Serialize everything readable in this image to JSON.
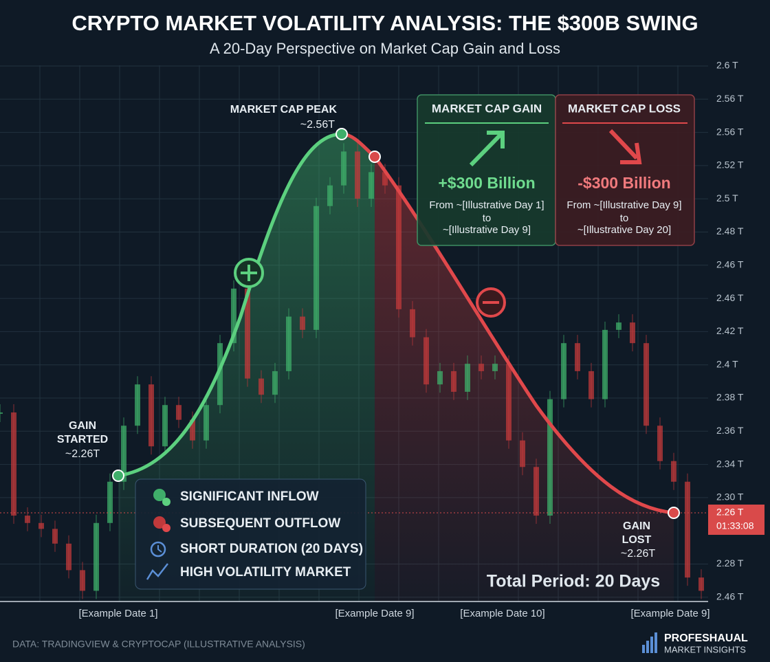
{
  "header": {
    "title": "CRYPTO MARKET VOLATILITY ANALYSIS: THE $300B SWING",
    "subtitle": "A 20-Day Perspective on Market Cap Gain and Loss"
  },
  "axis": {
    "labels": [
      "2.6 T",
      "2.56 T",
      "2.56 T",
      "2.52 T",
      "2.5 T",
      "2.48 T",
      "2.46 T",
      "2.46 T",
      "2.42 T",
      "2.4 T",
      "2.38 T",
      "2.36 T",
      "2.34 T",
      "2.30 T",
      "2.28 T",
      "2.46 T"
    ],
    "current_price": {
      "label": "2.26 T",
      "timer": "01:33:08"
    }
  },
  "dates": [
    "[Example Date 1]",
    "[Example Date 9]",
    "[Example Date 10]",
    "[Example Date 9]"
  ],
  "price": {
    "scale": [
      2.24,
      2.6
    ],
    "closes": [
      2.365,
      2.295,
      2.29,
      2.286,
      2.276,
      2.258,
      2.244,
      2.29,
      2.318,
      2.356,
      2.384,
      2.342,
      2.37,
      2.36,
      2.346,
      2.37,
      2.412,
      2.449,
      2.388,
      2.377,
      2.393,
      2.43,
      2.421,
      2.505,
      2.519,
      2.542,
      2.51,
      2.528,
      2.519,
      2.435,
      2.416,
      2.384,
      2.393,
      2.379,
      2.398,
      2.393,
      2.398,
      2.346,
      2.328,
      2.295,
      2.374,
      2.412,
      2.393,
      2.374,
      2.421,
      2.426,
      2.412,
      2.356,
      2.332,
      2.318,
      2.253,
      2.244
    ]
  },
  "annotations": {
    "peak": {
      "title": "MARKET CAP PEAK",
      "value": "~2.56T"
    },
    "gain_started": {
      "lines": [
        "GAIN",
        "STARTED"
      ],
      "value": "~2.26T"
    },
    "gain_lost": {
      "lines": [
        "GAIN",
        "LOST"
      ],
      "value": "~2.26T"
    }
  },
  "panel": {
    "gain": {
      "header": "MARKET CAP GAIN",
      "amount": "+$300 Billion",
      "from": "From ~[Illustrative Day 1]",
      "to": "to",
      "until": "~[Illustrative Day 9]"
    },
    "loss": {
      "header": "MARKET CAP LOSS",
      "amount": "-$300 Billion",
      "from": "From ~[Illustrative Day 9]",
      "to": "to",
      "until": "~[Illustrative Day 20]"
    }
  },
  "legend": [
    "SIGNIFICANT INFLOW",
    "SUBSEQUENT OUTFLOW",
    "SHORT DURATION (20 DAYS)",
    "HIGH VOLATILITY MARKET"
  ],
  "total_period": "Total Period: 20 Days",
  "footer": {
    "source": "DATA: TRADINGVIEW & CRYPTOCAP (ILLUSTRATIVE ANALYSIS)",
    "brand": [
      "PROFESHAUAL",
      "MARKET INSIGHTS"
    ]
  }
}
